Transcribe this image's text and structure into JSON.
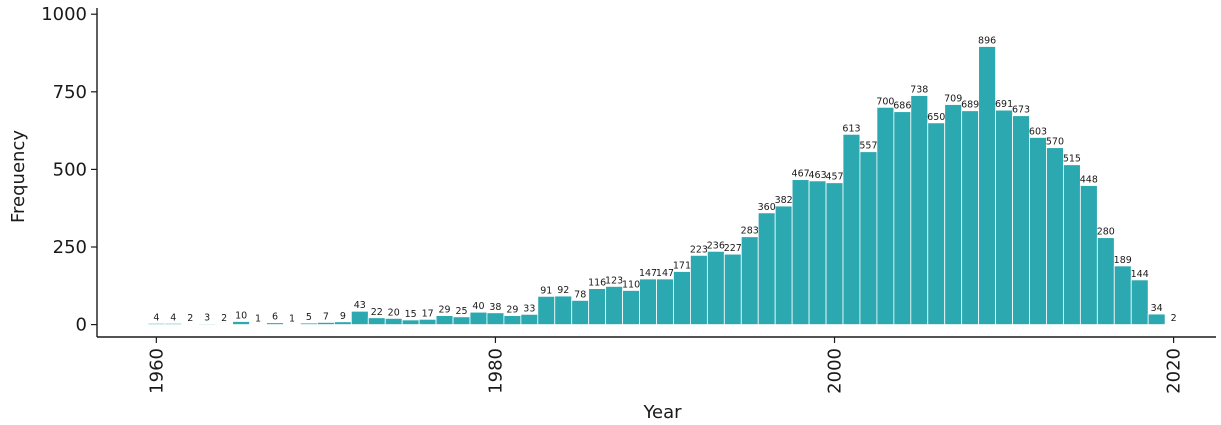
{
  "chart_data": {
    "type": "bar",
    "title": "",
    "xlabel": "Year",
    "ylabel": "Frequency",
    "x": [
      1960,
      1961,
      1962,
      1963,
      1964,
      1965,
      1966,
      1967,
      1968,
      1969,
      1970,
      1971,
      1972,
      1973,
      1974,
      1975,
      1976,
      1977,
      1978,
      1979,
      1980,
      1981,
      1982,
      1983,
      1984,
      1985,
      1986,
      1987,
      1988,
      1989,
      1990,
      1991,
      1992,
      1993,
      1994,
      1995,
      1996,
      1997,
      1998,
      1999,
      2000,
      2001,
      2002,
      2003,
      2004,
      2005,
      2006,
      2007,
      2008,
      2009,
      2010,
      2011,
      2012,
      2013,
      2014,
      2015,
      2016,
      2017,
      2018,
      2019,
      2020
    ],
    "values": [
      4,
      4,
      2,
      3,
      2,
      10,
      1,
      6,
      1,
      5,
      7,
      9,
      43,
      22,
      20,
      15,
      17,
      29,
      25,
      40,
      38,
      29,
      33,
      91,
      92,
      78,
      116,
      123,
      110,
      147,
      147,
      171,
      223,
      236,
      227,
      283,
      360,
      382,
      467,
      463,
      457,
      613,
      557,
      700,
      686,
      738,
      650,
      709,
      689,
      896,
      691,
      673,
      603,
      570,
      515,
      448,
      280,
      189,
      144,
      34,
      2
    ],
    "data_labels": [
      "4",
      "4",
      "2",
      "3",
      "2",
      "10",
      "1",
      "6",
      "1",
      "5",
      "7",
      "9",
      "43",
      "22",
      "20",
      "15",
      "17",
      "29",
      "25",
      "40",
      "38",
      "29",
      "33",
      "91",
      "92",
      "78",
      "116",
      "123",
      "110",
      "147",
      "147",
      "171",
      "223",
      "236",
      "227",
      "283",
      "360",
      "382",
      "467",
      "463",
      "457",
      "613",
      "557",
      "700",
      "686",
      "738",
      "650",
      "709",
      "689",
      "896",
      "691",
      "673",
      "603",
      "570",
      "515",
      "448",
      "280",
      "189",
      "144",
      "34",
      "2"
    ],
    "xlim": [
      1956.5,
      2022.5
    ],
    "ylim": [
      -40,
      1020
    ],
    "x_ticks": [
      1960,
      1980,
      2000,
      2020
    ],
    "x_tick_labels": [
      "1960",
      "1980",
      "2000",
      "2020"
    ],
    "y_ticks": [
      0,
      250,
      500,
      750,
      1000
    ],
    "y_tick_labels": [
      "0",
      "250",
      "500",
      "750",
      "1000"
    ],
    "grid": false,
    "legend": "none",
    "colors": {
      "bar": "#2ba8b0",
      "axis": "#1a1a1a"
    }
  }
}
